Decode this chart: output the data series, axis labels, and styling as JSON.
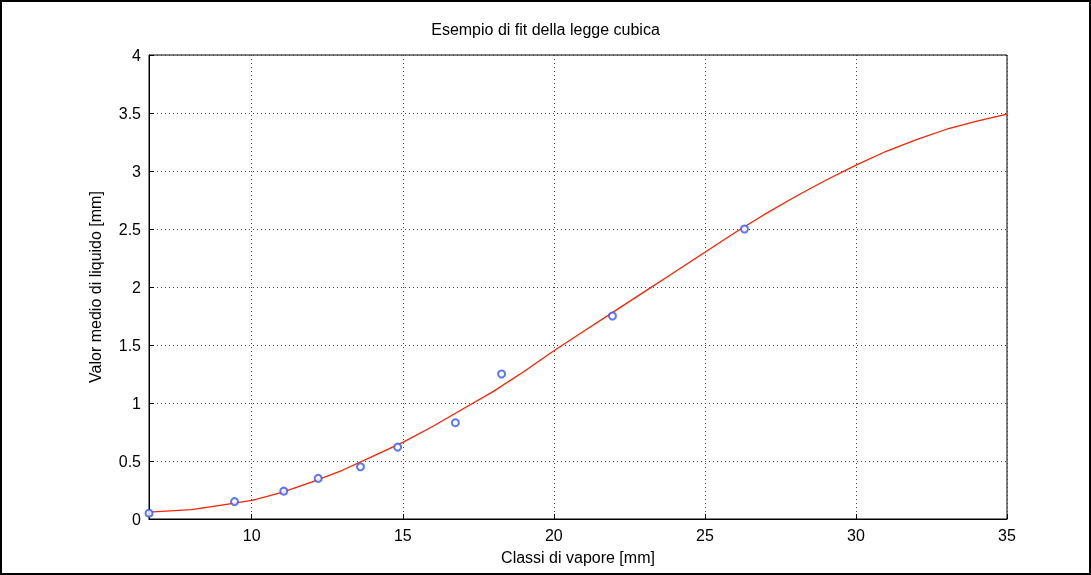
{
  "chart_data": {
    "type": "scatter",
    "title": "Esempio di fit della legge cubica",
    "xlabel": "Classi di vapore [mm]",
    "ylabel": "Valor medio di liquido [mm]",
    "series": [
      {
        "color": "#3355ff",
        "marker": "circle",
        "x": [
          6.6,
          9.43,
          11.06,
          12.2,
          13.6,
          14.83,
          16.74,
          18.27,
          21.94,
          26.31
        ],
        "values": [
          0.05,
          0.15,
          0.24,
          0.35,
          0.45,
          0.62,
          0.83,
          1.25,
          1.75,
          2.5
        ]
      },
      {
        "type": "line",
        "color": "#ff2200",
        "marker": "none",
        "line_style": "solid",
        "x": [
          6.6,
          8,
          9,
          10,
          11,
          12,
          13,
          14,
          15,
          16,
          17,
          18,
          19,
          20,
          21,
          22,
          23,
          24,
          25,
          26,
          27,
          28,
          29,
          30,
          31,
          32,
          33,
          34,
          35
        ],
        "values": [
          0.06,
          0.08,
          0.12,
          0.16,
          0.23,
          0.32,
          0.42,
          0.54,
          0.66,
          0.8,
          0.95,
          1.1,
          1.27,
          1.45,
          1.62,
          1.79,
          1.96,
          2.13,
          2.3,
          2.47,
          2.63,
          2.78,
          2.92,
          3.05,
          3.17,
          3.27,
          3.36,
          3.43,
          3.49
        ]
      }
    ],
    "xlim": [
      6.6,
      35
    ],
    "xticks": [
      10,
      15,
      20,
      25,
      30,
      35
    ],
    "ylim": [
      0,
      4
    ],
    "yticks": [
      0,
      0.5,
      1,
      1.5,
      2,
      2.5,
      3,
      3.5,
      4
    ],
    "grid": true
  }
}
